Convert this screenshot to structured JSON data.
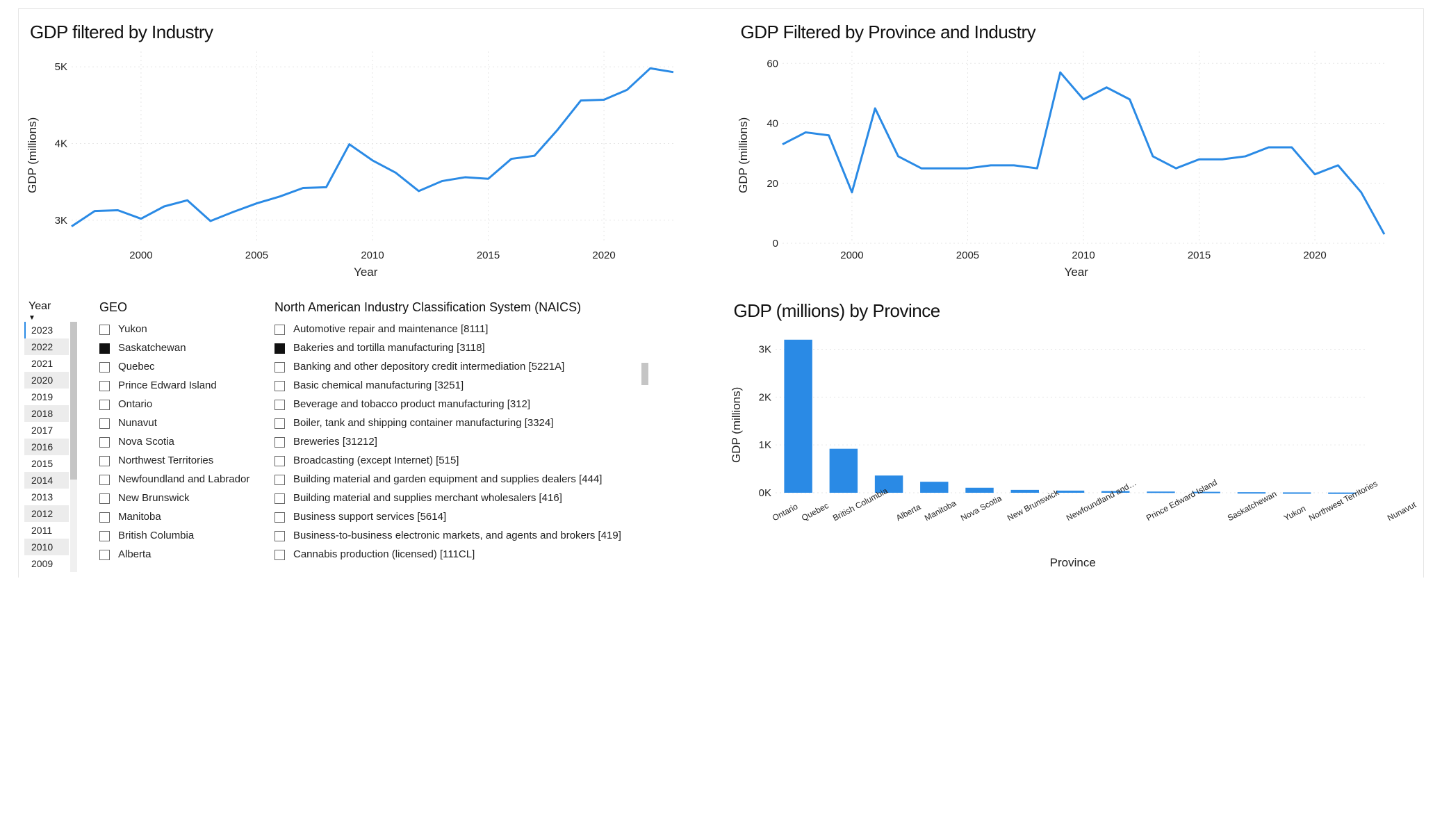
{
  "colors": {
    "line": "#2a8ae5",
    "bar": "#2a8ae5",
    "grid": "#e6e6e6",
    "axis": "#888",
    "text": "#111"
  },
  "chart_left": {
    "title": "GDP filtered by Industry",
    "type": "line",
    "y_label": "GDP (millions)",
    "x_label": "Year",
    "y_ticks": [
      "5K",
      "4K",
      "3K"
    ],
    "y_min": 2700,
    "y_max": 5200,
    "x_ticks": [
      "2000",
      "2005",
      "2010",
      "2015",
      "2020"
    ],
    "x_min": 1997,
    "x_max": 2023,
    "line_width": 3,
    "series": [
      {
        "x": 1997,
        "y": 2920
      },
      {
        "x": 1998,
        "y": 3120
      },
      {
        "x": 1999,
        "y": 3130
      },
      {
        "x": 2000,
        "y": 3020
      },
      {
        "x": 2001,
        "y": 3180
      },
      {
        "x": 2002,
        "y": 3260
      },
      {
        "x": 2003,
        "y": 2990
      },
      {
        "x": 2004,
        "y": 3110
      },
      {
        "x": 2005,
        "y": 3220
      },
      {
        "x": 2006,
        "y": 3310
      },
      {
        "x": 2007,
        "y": 3420
      },
      {
        "x": 2008,
        "y": 3430
      },
      {
        "x": 2009,
        "y": 3990
      },
      {
        "x": 2010,
        "y": 3780
      },
      {
        "x": 2011,
        "y": 3620
      },
      {
        "x": 2012,
        "y": 3380
      },
      {
        "x": 2013,
        "y": 3510
      },
      {
        "x": 2014,
        "y": 3560
      },
      {
        "x": 2015,
        "y": 3540
      },
      {
        "x": 2016,
        "y": 3800
      },
      {
        "x": 2017,
        "y": 3840
      },
      {
        "x": 2018,
        "y": 4180
      },
      {
        "x": 2019,
        "y": 4560
      },
      {
        "x": 2020,
        "y": 4570
      },
      {
        "x": 2021,
        "y": 4700
      },
      {
        "x": 2022,
        "y": 4980
      },
      {
        "x": 2023,
        "y": 4930
      }
    ]
  },
  "chart_right": {
    "title": "GDP Filtered by Province and Industry",
    "type": "line",
    "y_label": "GDP (millions)",
    "x_label": "Year",
    "y_ticks": [
      "60",
      "40",
      "20",
      "0"
    ],
    "y_min": 0,
    "y_max": 64,
    "x_ticks": [
      "2000",
      "2005",
      "2010",
      "2015",
      "2020"
    ],
    "x_min": 1997,
    "x_max": 2023,
    "line_width": 3,
    "series": [
      {
        "x": 1997,
        "y": 33
      },
      {
        "x": 1998,
        "y": 37
      },
      {
        "x": 1999,
        "y": 36
      },
      {
        "x": 2000,
        "y": 17
      },
      {
        "x": 2001,
        "y": 45
      },
      {
        "x": 2002,
        "y": 29
      },
      {
        "x": 2003,
        "y": 25
      },
      {
        "x": 2004,
        "y": 25
      },
      {
        "x": 2005,
        "y": 25
      },
      {
        "x": 2006,
        "y": 26
      },
      {
        "x": 2007,
        "y": 26
      },
      {
        "x": 2008,
        "y": 25
      },
      {
        "x": 2009,
        "y": 57
      },
      {
        "x": 2010,
        "y": 48
      },
      {
        "x": 2011,
        "y": 52
      },
      {
        "x": 2012,
        "y": 48
      },
      {
        "x": 2013,
        "y": 29
      },
      {
        "x": 2014,
        "y": 25
      },
      {
        "x": 2015,
        "y": 28
      },
      {
        "x": 2016,
        "y": 28
      },
      {
        "x": 2017,
        "y": 29
      },
      {
        "x": 2018,
        "y": 32
      },
      {
        "x": 2019,
        "y": 32
      },
      {
        "x": 2020,
        "y": 23
      },
      {
        "x": 2021,
        "y": 26
      },
      {
        "x": 2022,
        "y": 17
      },
      {
        "x": 2023,
        "y": 3
      }
    ]
  },
  "year_slicer": {
    "title": "Year",
    "items": [
      {
        "v": "2023",
        "sel": true,
        "alt": false
      },
      {
        "v": "2022",
        "sel": false,
        "alt": true
      },
      {
        "v": "2021",
        "sel": false,
        "alt": false
      },
      {
        "v": "2020",
        "sel": false,
        "alt": true
      },
      {
        "v": "2019",
        "sel": false,
        "alt": false
      },
      {
        "v": "2018",
        "sel": false,
        "alt": true
      },
      {
        "v": "2017",
        "sel": false,
        "alt": false
      },
      {
        "v": "2016",
        "sel": false,
        "alt": true
      },
      {
        "v": "2015",
        "sel": false,
        "alt": false
      },
      {
        "v": "2014",
        "sel": false,
        "alt": true
      },
      {
        "v": "2013",
        "sel": false,
        "alt": false
      },
      {
        "v": "2012",
        "sel": false,
        "alt": true
      },
      {
        "v": "2011",
        "sel": false,
        "alt": false
      },
      {
        "v": "2010",
        "sel": false,
        "alt": true
      },
      {
        "v": "2009",
        "sel": false,
        "alt": false
      }
    ]
  },
  "geo_slicer": {
    "title": "GEO",
    "items": [
      {
        "label": "Yukon",
        "checked": false
      },
      {
        "label": "Saskatchewan",
        "checked": true
      },
      {
        "label": "Quebec",
        "checked": false
      },
      {
        "label": "Prince Edward Island",
        "checked": false
      },
      {
        "label": "Ontario",
        "checked": false
      },
      {
        "label": "Nunavut",
        "checked": false
      },
      {
        "label": "Nova Scotia",
        "checked": false
      },
      {
        "label": "Northwest Territories",
        "checked": false
      },
      {
        "label": "Newfoundland and Labrador",
        "checked": false
      },
      {
        "label": "New Brunswick",
        "checked": false
      },
      {
        "label": "Manitoba",
        "checked": false
      },
      {
        "label": "British Columbia",
        "checked": false
      },
      {
        "label": "Alberta",
        "checked": false
      }
    ]
  },
  "naics_slicer": {
    "title": "North American Industry Classification System (NAICS)",
    "items": [
      {
        "label": "Automotive repair and maintenance [8111]",
        "checked": false
      },
      {
        "label": "Bakeries and tortilla manufacturing [3118]",
        "checked": true
      },
      {
        "label": "Banking and other depository credit intermediation [5221A]",
        "checked": false
      },
      {
        "label": "Basic chemical manufacturing [3251]",
        "checked": false
      },
      {
        "label": "Beverage and tobacco product manufacturing [312]",
        "checked": false
      },
      {
        "label": "Boiler, tank and shipping container manufacturing [3324]",
        "checked": false
      },
      {
        "label": "Breweries [31212]",
        "checked": false
      },
      {
        "label": "Broadcasting (except Internet) [515]",
        "checked": false
      },
      {
        "label": "Building material and garden equipment and supplies dealers [444]",
        "checked": false
      },
      {
        "label": "Building material and supplies merchant wholesalers [416]",
        "checked": false
      },
      {
        "label": "Business support services [5614]",
        "checked": false
      },
      {
        "label": "Business-to-business electronic markets, and agents and brokers [419]",
        "checked": false
      },
      {
        "label": "Cannabis production (licensed) [111CL]",
        "checked": false
      }
    ]
  },
  "bar_chart": {
    "title": "GDP (millions) by Province",
    "type": "bar",
    "y_label": "GDP (millions)",
    "x_label": "Province",
    "y_ticks": [
      "3K",
      "2K",
      "1K",
      "0K"
    ],
    "y_min": 0,
    "y_max": 3400,
    "bar_color": "#2a8ae5",
    "bars": [
      {
        "label": "Ontario",
        "v": 3200
      },
      {
        "label": "Quebec",
        "v": 920
      },
      {
        "label": "British Columbia",
        "v": 360
      },
      {
        "label": "Alberta",
        "v": 230
      },
      {
        "label": "Manitoba",
        "v": 105
      },
      {
        "label": "Nova Scotia",
        "v": 60
      },
      {
        "label": "New Brunswick",
        "v": 45
      },
      {
        "label": "Newfoundland and…",
        "v": 35
      },
      {
        "label": "Prince Edward Island",
        "v": 25
      },
      {
        "label": "Saskatchewan",
        "v": 20
      },
      {
        "label": "Yukon",
        "v": 12
      },
      {
        "label": "Northwest Territories",
        "v": 8
      },
      {
        "label": "Nunavut",
        "v": 5
      }
    ]
  }
}
